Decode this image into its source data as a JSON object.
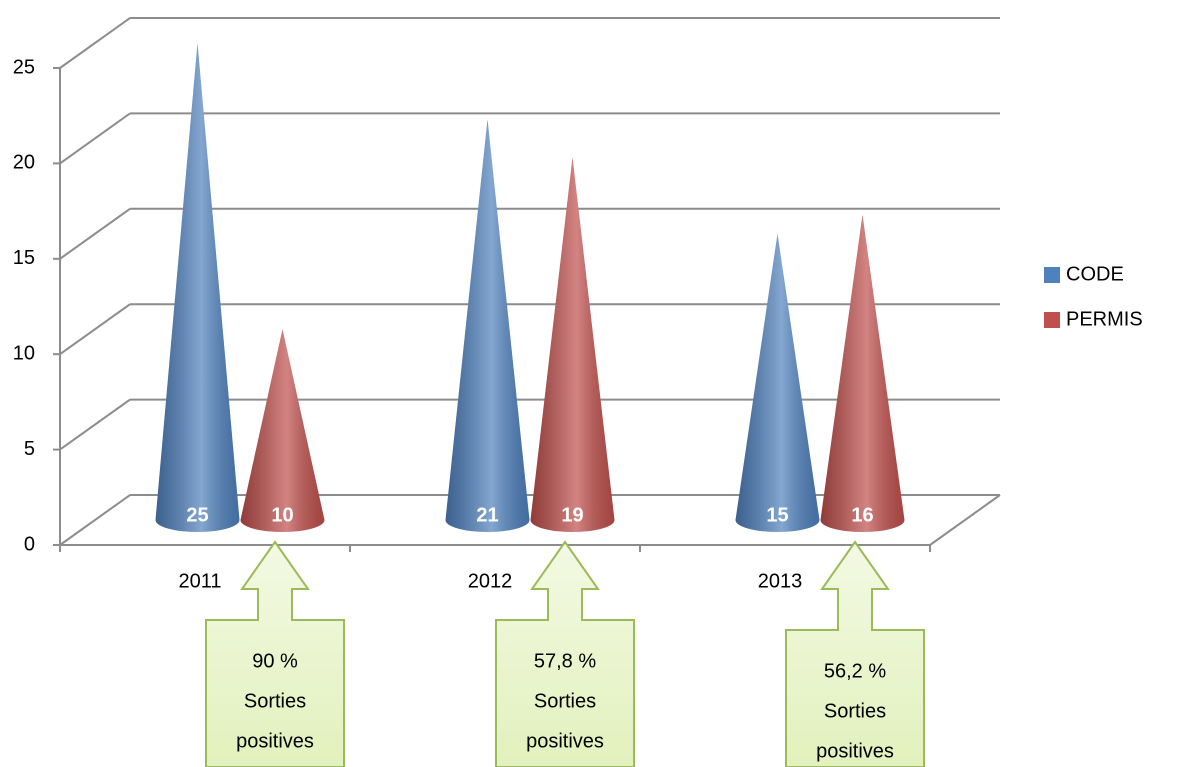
{
  "chart_data": {
    "type": "cone",
    "categories": [
      "2011",
      "2012",
      "2013"
    ],
    "series": [
      {
        "name": "CODE",
        "color": "#4f81bd",
        "values": [
          25,
          21,
          15
        ]
      },
      {
        "name": "PERMIS",
        "color": "#c0504d",
        "values": [
          10,
          19,
          16
        ]
      }
    ],
    "ylim": [
      0,
      25
    ],
    "yticks": [
      0,
      5,
      10,
      15,
      20,
      25
    ],
    "grid": true,
    "legend": "right",
    "annotations": [
      {
        "lines": [
          "90 %",
          "Sorties",
          "positives"
        ]
      },
      {
        "lines": [
          "57,8 %",
          "Sorties",
          "positives"
        ]
      },
      {
        "lines": [
          "56,2 %",
          "Sorties",
          "positives"
        ]
      }
    ]
  }
}
